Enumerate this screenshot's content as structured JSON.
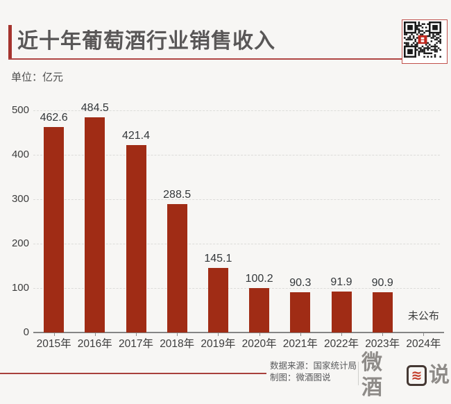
{
  "header": {
    "title": "近十年葡萄酒行业销售收入",
    "unit_label": "单位：亿元",
    "qr_icon": "qr-code-icon"
  },
  "chart_data": {
    "type": "bar",
    "title": "近十年葡萄酒行业销售收入",
    "unit": "亿元",
    "categories": [
      "2015年",
      "2016年",
      "2017年",
      "2018年",
      "2019年",
      "2020年",
      "2021年",
      "2022年",
      "2023年",
      "2024年"
    ],
    "values": [
      462.6,
      484.5,
      421.4,
      288.5,
      145.1,
      100.2,
      90.3,
      91.9,
      90.9,
      null
    ],
    "value_labels": [
      "462.6",
      "484.5",
      "421.4",
      "288.5",
      "145.1",
      "100.2",
      "90.3",
      "91.9",
      "90.9",
      ""
    ],
    "no_data_label": "未公布",
    "no_data_category_index": 9,
    "ylim": [
      0,
      500
    ],
    "yticks": [
      0,
      100,
      200,
      300,
      400,
      500
    ],
    "grid": "dashed-horizontal",
    "legend": "none",
    "bar_color": "#A02C15",
    "accent_color": "#A5342E",
    "axis_color": "#858585"
  },
  "footer": {
    "source_label": "数据来源：国家统计局",
    "credit_label": "制图：微酒图说",
    "logo_text_left": "微酒",
    "logo_box_glyph": "≋",
    "logo_text_right": "说"
  }
}
